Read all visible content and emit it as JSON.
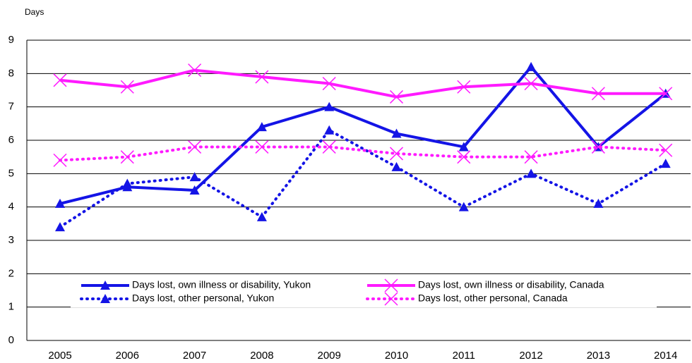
{
  "chart_data": {
    "type": "line",
    "y_axis_label": "Days",
    "categories": [
      "2005",
      "2006",
      "2007",
      "2008",
      "2009",
      "2010",
      "2011",
      "2012",
      "2013",
      "2014"
    ],
    "series": [
      {
        "name": "Days lost, own illness or disability, Yukon",
        "color": "#1414e6",
        "marker": "triangle",
        "dash": "solid",
        "values": [
          4.1,
          4.6,
          4.5,
          6.4,
          7.0,
          6.2,
          5.8,
          8.2,
          5.8,
          7.4
        ]
      },
      {
        "name": "Days lost, own illness or disability, Canada",
        "color": "#ff1aff",
        "marker": "x",
        "dash": "solid",
        "values": [
          7.8,
          7.6,
          8.1,
          7.9,
          7.7,
          7.3,
          7.6,
          7.7,
          7.4,
          7.4
        ]
      },
      {
        "name": "Days lost, other personal, Yukon",
        "color": "#1414e6",
        "marker": "triangle",
        "dash": "dotted",
        "values": [
          3.4,
          4.7,
          4.9,
          3.7,
          6.3,
          5.2,
          4.0,
          5.0,
          4.1,
          5.3
        ]
      },
      {
        "name": "Days lost, other personal, Canada",
        "color": "#ff1aff",
        "marker": "x",
        "dash": "dotted",
        "values": [
          5.4,
          5.5,
          5.8,
          5.8,
          5.8,
          5.6,
          5.5,
          5.5,
          5.8,
          5.7
        ]
      }
    ],
    "ylim": [
      0,
      9
    ],
    "yticks": [
      0,
      1,
      2,
      3,
      4,
      5,
      6,
      7,
      8,
      9
    ],
    "grid": true,
    "legend": "lower"
  }
}
